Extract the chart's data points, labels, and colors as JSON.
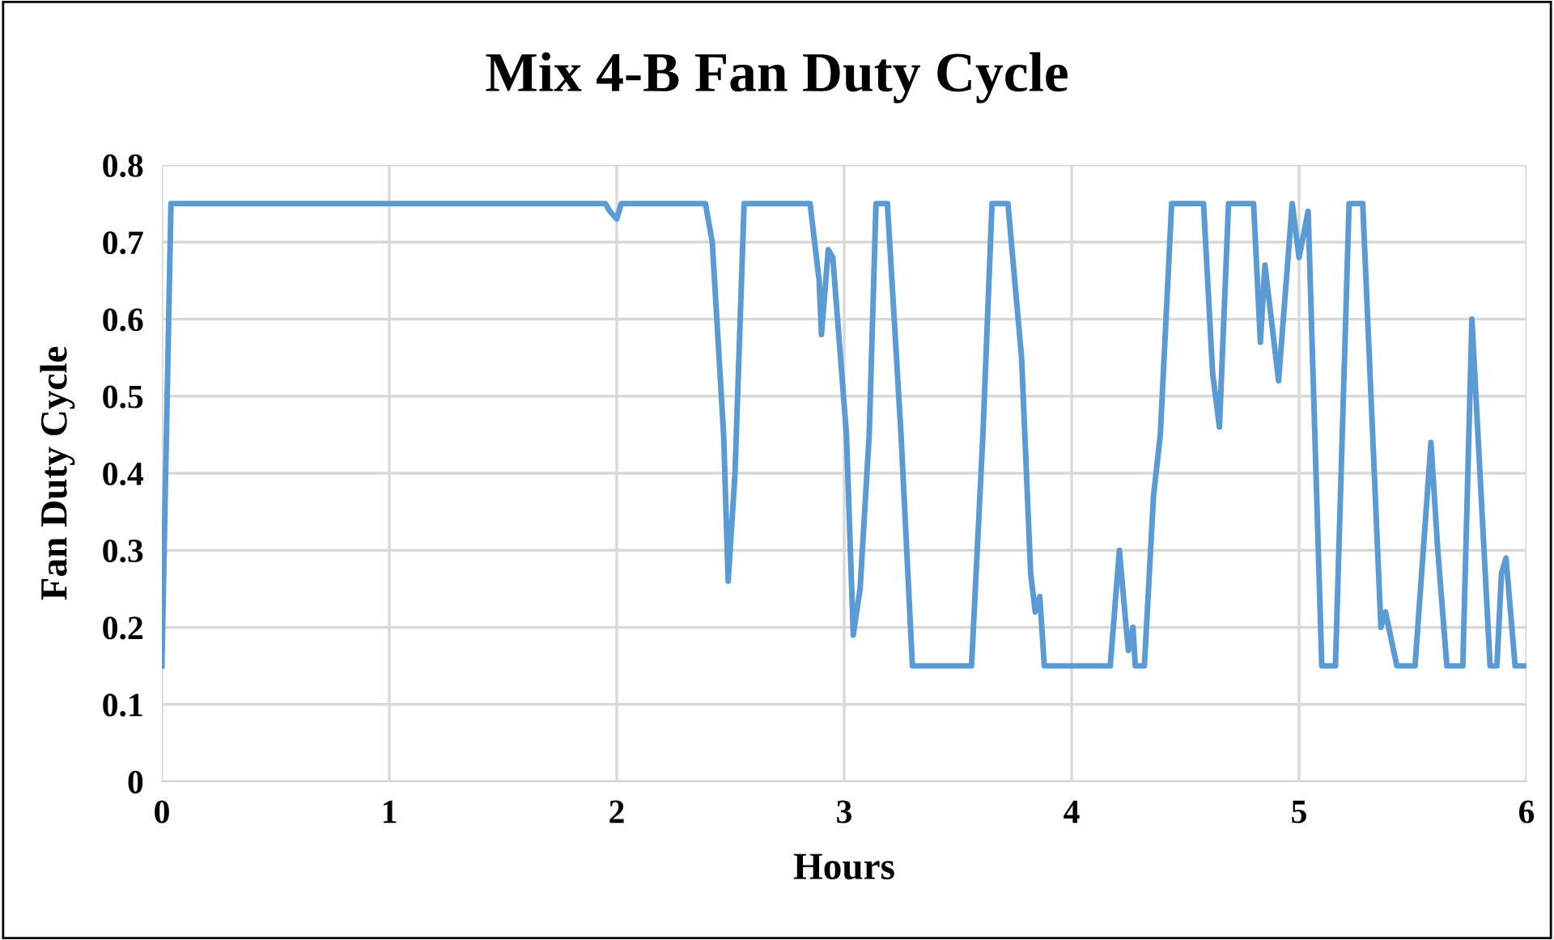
{
  "chart_data": {
    "type": "line",
    "title": "Mix 4-B Fan Duty Cycle",
    "xlabel": "Hours",
    "ylabel": "Fan Duty Cycle",
    "series": [
      {
        "color": "#5b9bd5",
        "x": [
          0,
          0.04,
          1.5,
          1.95,
          1.97,
          2.0,
          2.02,
          2.39,
          2.42,
          2.47,
          2.49,
          2.52,
          2.56,
          2.85,
          2.89,
          2.9,
          2.93,
          2.95,
          3.01,
          3.04,
          3.07,
          3.11,
          3.14,
          3.19,
          3.25,
          3.3,
          3.56,
          3.61,
          3.65,
          3.72,
          3.78,
          3.82,
          3.84,
          3.86,
          3.88,
          4.17,
          4.21,
          4.24,
          4.25,
          4.27,
          4.28,
          4.32,
          4.36,
          4.39,
          4.44,
          4.58,
          4.62,
          4.65,
          4.69,
          4.8,
          4.83,
          4.85,
          4.91,
          4.97,
          5.0,
          5.04,
          5.1,
          5.16,
          5.22,
          5.28,
          5.36,
          5.38,
          5.43,
          5.51,
          5.58,
          5.61,
          5.65,
          5.72,
          5.76,
          5.84,
          5.87,
          5.89,
          5.91,
          5.95,
          6.0
        ],
        "values": [
          0.15,
          0.75,
          0.75,
          0.75,
          0.74,
          0.73,
          0.75,
          0.75,
          0.7,
          0.45,
          0.26,
          0.4,
          0.75,
          0.75,
          0.65,
          0.58,
          0.69,
          0.68,
          0.45,
          0.19,
          0.25,
          0.45,
          0.75,
          0.75,
          0.45,
          0.15,
          0.15,
          0.45,
          0.75,
          0.75,
          0.55,
          0.27,
          0.22,
          0.24,
          0.15,
          0.15,
          0.3,
          0.2,
          0.17,
          0.2,
          0.15,
          0.15,
          0.37,
          0.45,
          0.75,
          0.75,
          0.53,
          0.46,
          0.75,
          0.75,
          0.57,
          0.67,
          0.52,
          0.75,
          0.68,
          0.74,
          0.15,
          0.15,
          0.75,
          0.75,
          0.2,
          0.22,
          0.15,
          0.15,
          0.44,
          0.3,
          0.15,
          0.15,
          0.6,
          0.15,
          0.15,
          0.27,
          0.29,
          0.15,
          0.15
        ]
      }
    ],
    "xlim": [
      0,
      6
    ],
    "xticks": [
      0,
      1,
      2,
      3,
      4,
      5,
      6
    ],
    "ylim": [
      0,
      0.8
    ],
    "yticks": [
      {
        "value": 0,
        "label": "0"
      },
      0.1,
      0.2,
      0.3,
      0.4,
      0.5,
      0.6,
      0.7,
      0.8
    ],
    "grid": true,
    "legend": false,
    "marker": "none",
    "line_style": "solid"
  }
}
